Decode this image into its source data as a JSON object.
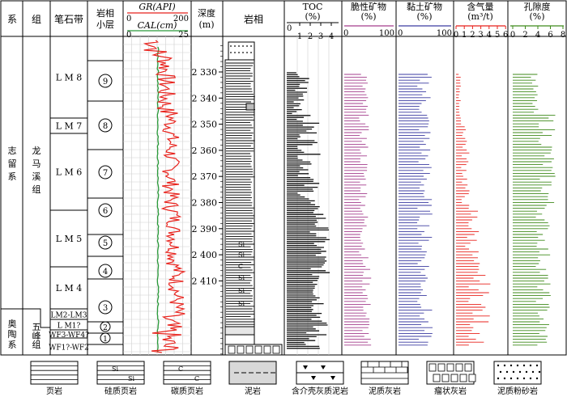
{
  "headers": {
    "system": "系",
    "group": "组",
    "graptolite_zone": "笔石带",
    "facies_sublayer": "岩相\n小层",
    "gr_label": "GR(API)",
    "gr_min": "0",
    "gr_max": "200",
    "cal_label": "CAL(cm)",
    "cal_min": "0",
    "cal_max": "25",
    "depth": "深度\n(m)",
    "lithology": "岩相",
    "toc": "TOC\n(%)",
    "toc_min": "0",
    "toc_ticks": [
      "1",
      "2",
      "3",
      "4"
    ],
    "brittle": "脆性矿物\n(%)",
    "brittle_min": "0",
    "brittle_max": "100",
    "clay": "黏土矿物\n(%)",
    "clay_min": "0",
    "clay_max": "100",
    "gas": "含气量\n(m³/t)",
    "gas_ticks": [
      "0",
      "1",
      "2",
      "3",
      "4",
      "5",
      "6"
    ],
    "porosity": "孔隙度\n(%)",
    "porosity_ticks": [
      "0",
      "2",
      "4",
      "6",
      "8"
    ]
  },
  "systems": [
    {
      "name": "志留系"
    },
    {
      "name": "奥陶系"
    }
  ],
  "groups": [
    {
      "name": "龙马溪组"
    },
    {
      "name": "五峰组"
    }
  ],
  "zones": [
    {
      "name": "L M 8"
    },
    {
      "name": "L M 7"
    },
    {
      "name": "L M 6"
    },
    {
      "name": "L M 5"
    },
    {
      "name": "L M 4"
    },
    {
      "name": "LM2-LM3"
    },
    {
      "name": "L M1?"
    },
    {
      "name": "WF3-WF4?"
    },
    {
      "name": "WF1?-WF2"
    }
  ],
  "sublayers": [
    "9",
    "8",
    "7",
    "6",
    "5",
    "4",
    "3",
    "2",
    "1"
  ],
  "depth_ticks": [
    "2 330",
    "2 340",
    "2 350",
    "2 360",
    "2 370",
    "2 380",
    "2 390",
    "2 400",
    "2 410"
  ],
  "legend": [
    {
      "name": "页岩"
    },
    {
      "name": "硅质页岩"
    },
    {
      "name": "碳质页岩"
    },
    {
      "name": "泥岩"
    },
    {
      "name": "含介壳灰质泥岩"
    },
    {
      "name": "泥质灰岩"
    },
    {
      "name": "瘤状灰岩"
    },
    {
      "name": "泥质粉砂岩"
    }
  ],
  "lith_marks": {
    "si": "Si",
    "c": "C"
  },
  "colors": {
    "gr": "#e8221c",
    "cal": "#2a9a3a",
    "brittle": "#a33c8c",
    "clay": "#3a3aa0",
    "gas": "#e8221c",
    "porosity": "#3e8a1a",
    "toc": "#111111"
  }
}
